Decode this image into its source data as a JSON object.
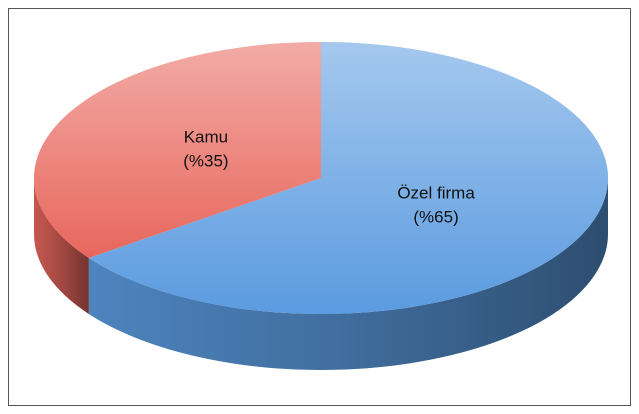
{
  "chart_data": {
    "type": "pie",
    "categories": [
      "Kamu",
      "Özel firma"
    ],
    "values": [
      35,
      65
    ],
    "value_labels": [
      "(%35)",
      "(%65)"
    ],
    "colors": [
      "#e8675d",
      "#5b9be0"
    ]
  }
}
